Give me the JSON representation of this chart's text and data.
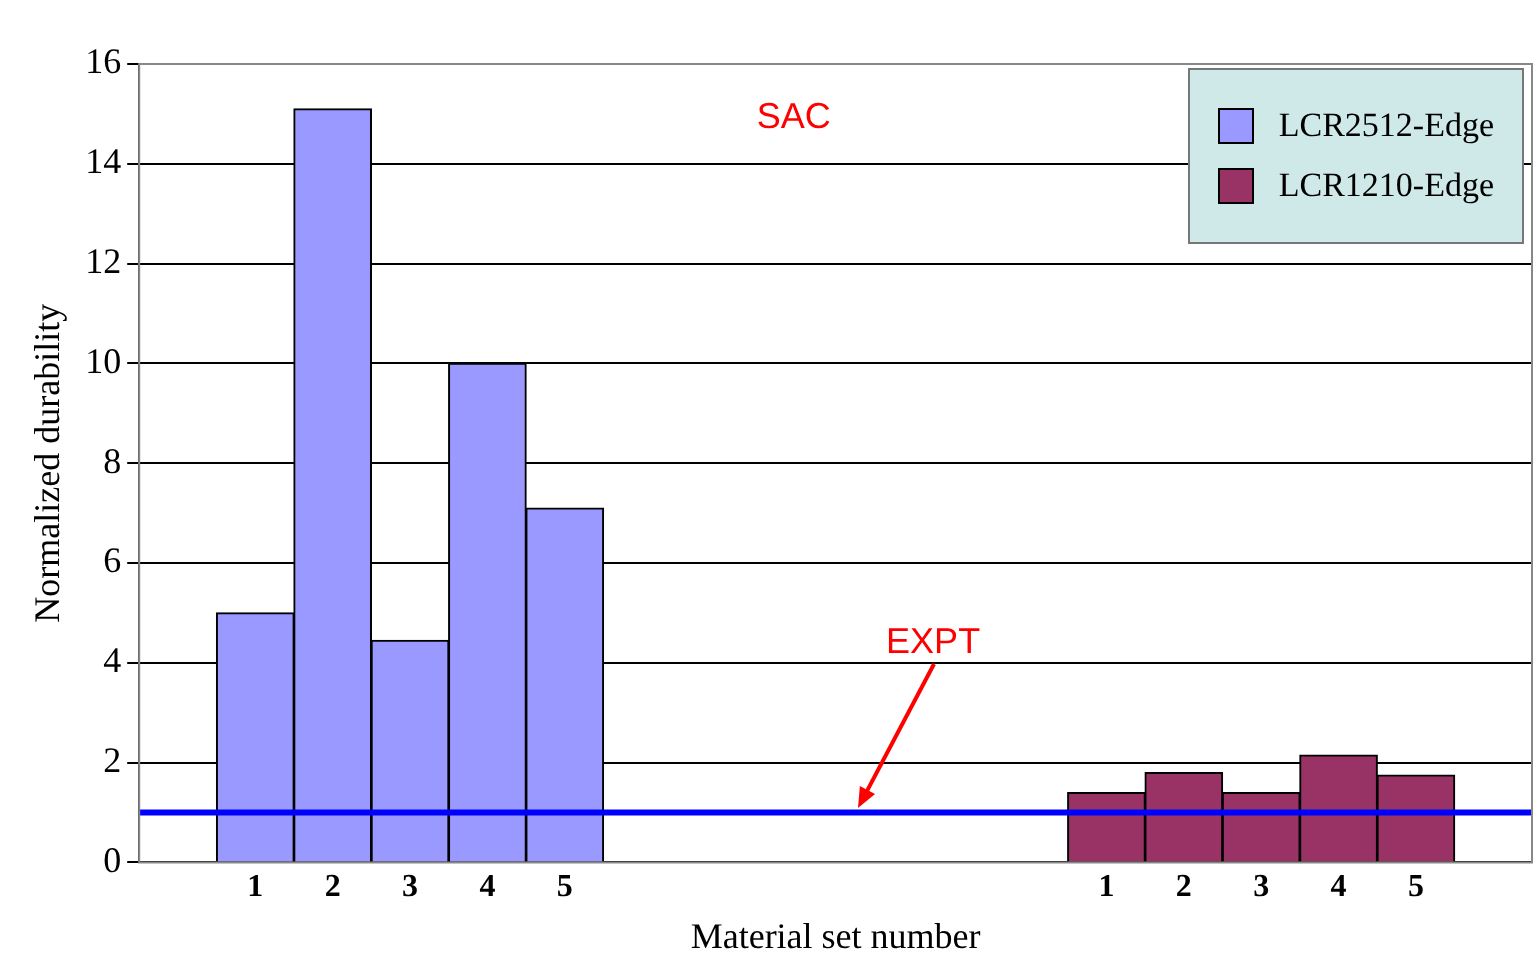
{
  "chart_data": {
    "type": "bar",
    "xlabel": "Material set number",
    "ylabel": "Normalized durability",
    "categories": [
      null,
      "1",
      "2",
      "3",
      "4",
      "5",
      null,
      null,
      null,
      null,
      null,
      null,
      "1",
      "2",
      "3",
      "4",
      "5",
      null
    ],
    "series": [
      {
        "name": "LCR2512-Edge",
        "color": "#9999ff",
        "values": [
          null,
          5.0,
          15.1,
          4.45,
          10.0,
          7.1,
          null,
          null,
          null,
          null,
          null,
          null,
          null,
          null,
          null,
          null,
          null,
          null
        ]
      },
      {
        "name": "LCR1210-Edge",
        "color": "#993366",
        "values": [
          null,
          null,
          null,
          null,
          null,
          null,
          null,
          null,
          null,
          null,
          null,
          null,
          1.4,
          1.8,
          1.4,
          2.15,
          1.75,
          null
        ]
      }
    ],
    "ylim": [
      0,
      16
    ],
    "yticks": [
      0,
      2,
      4,
      6,
      8,
      10,
      12,
      14,
      16
    ],
    "grid": "y",
    "legend": "top right",
    "ref_lines": [
      {
        "axis": "y",
        "value": 1,
        "label": "EXPT",
        "color": "#0000ff"
      }
    ],
    "annotations": [
      "SAC"
    ]
  }
}
